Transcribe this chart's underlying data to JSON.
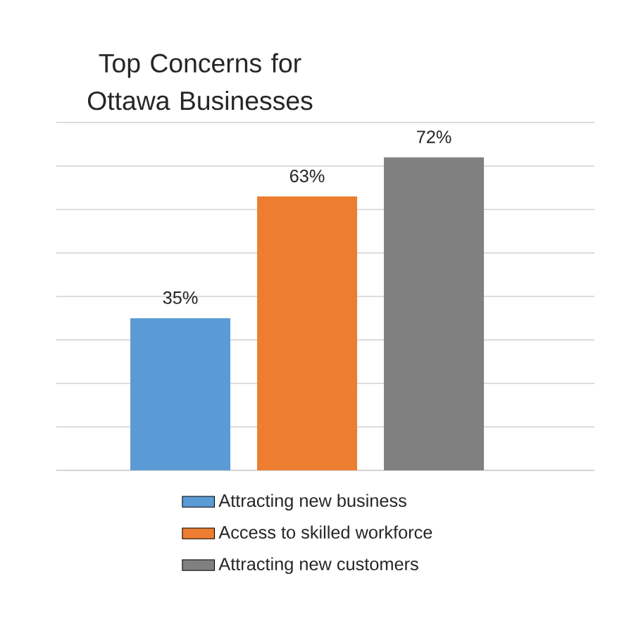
{
  "chart_data": {
    "type": "bar",
    "title": "Top Concerns for Ottawa Businesses",
    "categories": [
      null
    ],
    "series": [
      {
        "name": "Attracting new business",
        "color": "#5b9bd5",
        "values": [
          35
        ],
        "value_labels": [
          "35%"
        ]
      },
      {
        "name": "Access to skilled workforce",
        "color": "#ed7d31",
        "values": [
          63
        ],
        "value_labels": [
          "63%"
        ]
      },
      {
        "name": "Attracting new customers",
        "color": "#808080",
        "values": [
          72
        ],
        "value_labels": [
          "72%"
        ]
      }
    ],
    "ylim": [
      0,
      80
    ],
    "yticks": [
      {
        "value": 0,
        "label": null
      },
      {
        "value": 10,
        "label": null
      },
      {
        "value": 20,
        "label": null
      },
      {
        "value": 30,
        "label": null
      },
      {
        "value": 40,
        "label": null
      },
      {
        "value": 50,
        "label": null
      },
      {
        "value": 60,
        "label": null
      },
      {
        "value": 70,
        "label": null
      },
      {
        "value": 80,
        "label": null
      }
    ],
    "grid": "y",
    "legend": "bottom"
  }
}
